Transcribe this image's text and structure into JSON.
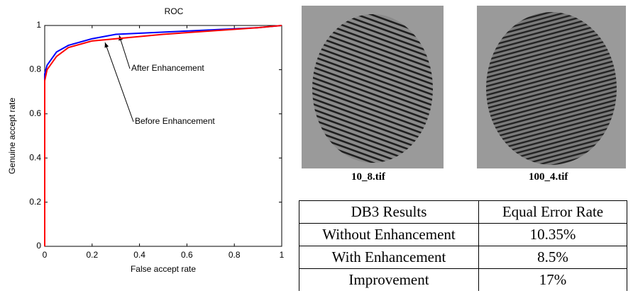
{
  "chart_data": {
    "type": "line",
    "title": "ROC",
    "x_label": "False accept rate",
    "y_label": "Genuine accept rate",
    "x": [
      0,
      0,
      0.01,
      0.05,
      0.1,
      0.2,
      0.3,
      0.5,
      0.7,
      0.9,
      1
    ],
    "series": [
      {
        "name": "After Enhancement",
        "color": "#0000ff",
        "values": [
          0,
          0.78,
          0.82,
          0.88,
          0.91,
          0.94,
          0.96,
          0.97,
          0.98,
          0.99,
          1
        ]
      },
      {
        "name": "Before Enhancement",
        "color": "#ff0000",
        "values": [
          0,
          0.75,
          0.8,
          0.86,
          0.9,
          0.93,
          0.94,
          0.96,
          0.975,
          0.99,
          1
        ]
      }
    ],
    "xlim": [
      0,
      1
    ],
    "ylim": [
      0,
      1
    ],
    "xticks": [
      0,
      0.2,
      0.4,
      0.6,
      0.8,
      1
    ],
    "yticks": [
      0,
      0.2,
      0.4,
      0.6,
      0.8,
      1
    ],
    "grid": false
  },
  "images": [
    {
      "caption": "10_8.tif"
    },
    {
      "caption": "100_4.tif"
    }
  ],
  "table": {
    "header": [
      "DB3 Results",
      "Equal Error Rate"
    ],
    "rows": [
      [
        "Without Enhancement",
        "10.35%"
      ],
      [
        "With Enhancement",
        "8.5%"
      ],
      [
        "Improvement",
        "17%"
      ]
    ]
  }
}
